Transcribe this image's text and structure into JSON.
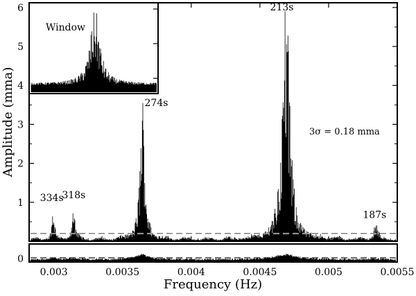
{
  "chart_data": {
    "type": "line",
    "xlabel": "Frequency (Hz)",
    "ylabel": "Amplitude (mma)",
    "xlim": [
      0.00282,
      0.0055
    ],
    "ylim": [
      0,
      6.05
    ],
    "x_ticks": [
      0.003,
      0.0035,
      0.004,
      0.0045,
      0.005,
      0.0055
    ],
    "x_tick_labels": [
      "0.003",
      "0.0035",
      "0.004",
      "0.0045",
      "0.005",
      "0.0055"
    ],
    "y_ticks": [
      1,
      2,
      3,
      4,
      5,
      6
    ],
    "y_tick_labels": [
      "1",
      "2",
      "3",
      "4",
      "5",
      "6"
    ],
    "noise_level": 0.18,
    "noise_label": "3σ = 0.18 mma",
    "peaks": [
      {
        "label": "334s",
        "freq": 0.002995,
        "amplitude": 0.78,
        "width": 1.1e-05
      },
      {
        "label": "318s",
        "freq": 0.003145,
        "amplitude": 0.85,
        "width": 1.2e-05
      },
      {
        "label": "274s",
        "freq": 0.003645,
        "amplitude": 3.4,
        "width": 2e-05
      },
      {
        "label": "213s",
        "freq": 0.00469,
        "amplitude": 5.85,
        "width": 3e-05
      },
      {
        "label": "187s",
        "freq": 0.005345,
        "amplitude": 0.42,
        "width": 1.5e-05
      }
    ],
    "inset": {
      "label": "Window",
      "y_ticks": [
        4,
        5,
        6
      ],
      "peak_amplitude": 5.8,
      "baseline": 3.78
    },
    "residual_panel": {
      "y_ticks": [
        0
      ],
      "y_tick_labels": [
        "0"
      ],
      "noise_level": 0.18
    }
  }
}
